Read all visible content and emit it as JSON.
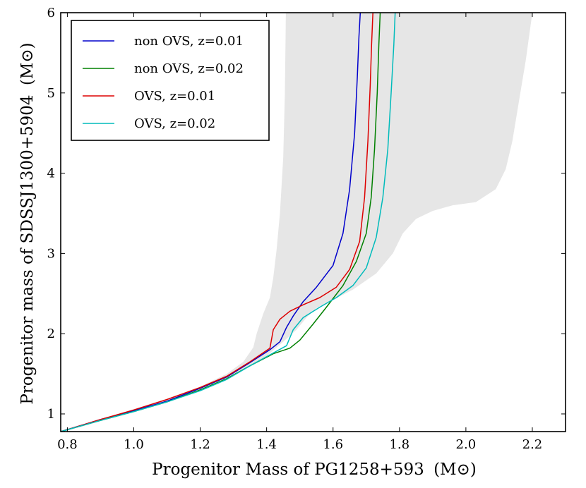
{
  "chart_data": {
    "type": "line",
    "title": "",
    "xlabel": "Progenitor Mass of PG1258+593",
    "ylabel": "Progenitor mass of SDSSJ1300+5904",
    "unit_label": "(M⊙)",
    "xlim": [
      0.78,
      2.3
    ],
    "ylim": [
      0.78,
      6.0
    ],
    "xticks": [
      0.8,
      1.0,
      1.2,
      1.4,
      1.6,
      1.8,
      2.0,
      2.2
    ],
    "xtick_labels": [
      "0.8",
      "1.0",
      "1.2",
      "1.4",
      "1.6",
      "1.8",
      "2.0",
      "2.2"
    ],
    "yticks": [
      1,
      2,
      3,
      4,
      5,
      6
    ],
    "ytick_labels": [
      "1",
      "2",
      "3",
      "4",
      "5",
      "6"
    ],
    "legend_position": "top-left",
    "shaded_band": {
      "color": "#e6e6e6",
      "upper": [
        [
          0.78,
          0.78
        ],
        [
          0.9,
          0.93
        ],
        [
          1.0,
          1.06
        ],
        [
          1.1,
          1.19
        ],
        [
          1.2,
          1.34
        ],
        [
          1.28,
          1.5
        ],
        [
          1.33,
          1.65
        ],
        [
          1.36,
          1.83
        ],
        [
          1.37,
          2.0
        ],
        [
          1.39,
          2.25
        ],
        [
          1.41,
          2.45
        ],
        [
          1.42,
          2.7
        ],
        [
          1.43,
          3.05
        ],
        [
          1.44,
          3.5
        ],
        [
          1.45,
          4.2
        ],
        [
          1.455,
          5.0
        ],
        [
          1.458,
          6.0
        ]
      ],
      "lower": [
        [
          2.2,
          6.0
        ],
        [
          2.18,
          5.4
        ],
        [
          2.16,
          4.9
        ],
        [
          2.14,
          4.4
        ],
        [
          2.12,
          4.05
        ],
        [
          2.09,
          3.8
        ],
        [
          2.03,
          3.64
        ],
        [
          1.96,
          3.6
        ],
        [
          1.9,
          3.53
        ],
        [
          1.85,
          3.43
        ],
        [
          1.81,
          3.25
        ],
        [
          1.78,
          3.0
        ],
        [
          1.73,
          2.75
        ],
        [
          1.66,
          2.55
        ],
        [
          1.6,
          2.42
        ],
        [
          1.55,
          2.32
        ],
        [
          1.52,
          2.2
        ],
        [
          1.49,
          2.05
        ],
        [
          1.45,
          1.9
        ],
        [
          1.4,
          1.72
        ],
        [
          1.32,
          1.52
        ],
        [
          1.2,
          1.3
        ],
        [
          1.1,
          1.16
        ],
        [
          1.0,
          1.04
        ],
        [
          0.9,
          0.91
        ],
        [
          0.78,
          0.78
        ]
      ]
    },
    "series": [
      {
        "name": "non OVS, z=0.01",
        "color": "#0000cc",
        "points": [
          [
            0.78,
            0.78
          ],
          [
            0.9,
            0.93
          ],
          [
            1.0,
            1.04
          ],
          [
            1.1,
            1.16
          ],
          [
            1.2,
            1.32
          ],
          [
            1.28,
            1.46
          ],
          [
            1.35,
            1.64
          ],
          [
            1.41,
            1.8
          ],
          [
            1.44,
            1.9
          ],
          [
            1.46,
            2.08
          ],
          [
            1.48,
            2.22
          ],
          [
            1.51,
            2.4
          ],
          [
            1.55,
            2.58
          ],
          [
            1.6,
            2.85
          ],
          [
            1.63,
            3.25
          ],
          [
            1.65,
            3.8
          ],
          [
            1.665,
            4.5
          ],
          [
            1.673,
            5.2
          ],
          [
            1.678,
            5.7
          ],
          [
            1.682,
            6.0
          ]
        ]
      },
      {
        "name": "non OVS, z=0.02",
        "color": "#008000",
        "points": [
          [
            0.78,
            0.78
          ],
          [
            0.9,
            0.92
          ],
          [
            1.0,
            1.03
          ],
          [
            1.1,
            1.15
          ],
          [
            1.2,
            1.3
          ],
          [
            1.28,
            1.44
          ],
          [
            1.35,
            1.6
          ],
          [
            1.42,
            1.75
          ],
          [
            1.47,
            1.82
          ],
          [
            1.5,
            1.92
          ],
          [
            1.54,
            2.12
          ],
          [
            1.58,
            2.33
          ],
          [
            1.63,
            2.6
          ],
          [
            1.67,
            2.9
          ],
          [
            1.7,
            3.25
          ],
          [
            1.715,
            3.7
          ],
          [
            1.725,
            4.3
          ],
          [
            1.733,
            5.0
          ],
          [
            1.738,
            5.6
          ],
          [
            1.742,
            6.0
          ]
        ]
      },
      {
        "name": "OVS, z=0.01",
        "color": "#dd0000",
        "points": [
          [
            0.78,
            0.78
          ],
          [
            0.9,
            0.93
          ],
          [
            1.0,
            1.05
          ],
          [
            1.1,
            1.18
          ],
          [
            1.2,
            1.33
          ],
          [
            1.28,
            1.47
          ],
          [
            1.35,
            1.65
          ],
          [
            1.41,
            1.82
          ],
          [
            1.42,
            2.05
          ],
          [
            1.44,
            2.18
          ],
          [
            1.47,
            2.28
          ],
          [
            1.51,
            2.36
          ],
          [
            1.56,
            2.45
          ],
          [
            1.61,
            2.58
          ],
          [
            1.65,
            2.8
          ],
          [
            1.68,
            3.15
          ],
          [
            1.695,
            3.7
          ],
          [
            1.705,
            4.4
          ],
          [
            1.712,
            5.1
          ],
          [
            1.716,
            5.6
          ],
          [
            1.72,
            6.0
          ]
        ]
      },
      {
        "name": "OVS, z=0.02",
        "color": "#00bbbb",
        "points": [
          [
            0.78,
            0.78
          ],
          [
            0.9,
            0.92
          ],
          [
            1.0,
            1.03
          ],
          [
            1.1,
            1.15
          ],
          [
            1.2,
            1.29
          ],
          [
            1.28,
            1.43
          ],
          [
            1.35,
            1.6
          ],
          [
            1.42,
            1.76
          ],
          [
            1.46,
            1.85
          ],
          [
            1.48,
            2.05
          ],
          [
            1.51,
            2.2
          ],
          [
            1.56,
            2.33
          ],
          [
            1.61,
            2.45
          ],
          [
            1.66,
            2.6
          ],
          [
            1.7,
            2.82
          ],
          [
            1.73,
            3.2
          ],
          [
            1.75,
            3.7
          ],
          [
            1.765,
            4.3
          ],
          [
            1.775,
            5.0
          ],
          [
            1.783,
            5.6
          ],
          [
            1.787,
            6.0
          ]
        ]
      }
    ]
  }
}
